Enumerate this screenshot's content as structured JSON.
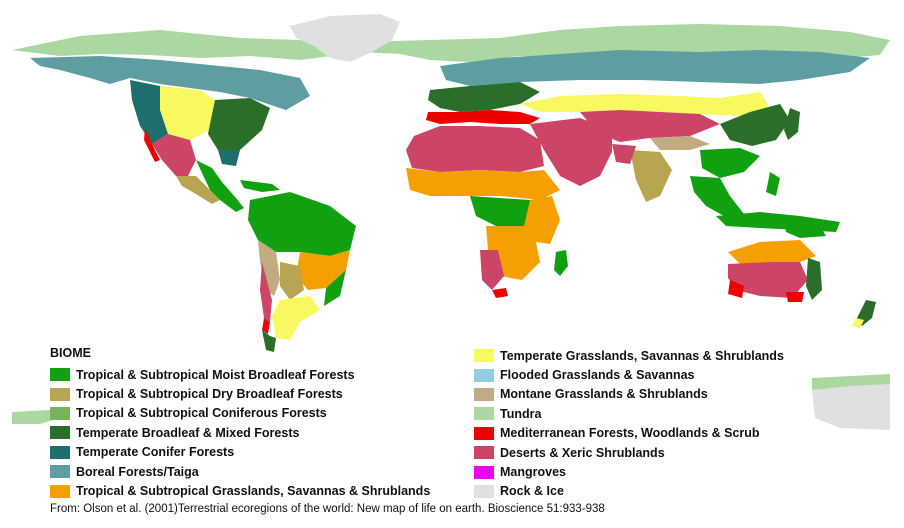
{
  "legend": {
    "title": "BIOME",
    "left_items": [
      {
        "label": "Tropical & Subtropical Moist Broadleaf Forests",
        "color": "#10a010"
      },
      {
        "label": "Tropical & Subtropical Dry Broadleaf Forests",
        "color": "#b8a552"
      },
      {
        "label": "Tropical & Subtropical Coniferous Forests",
        "color": "#78b45a"
      },
      {
        "label": "Temperate Broadleaf & Mixed Forests",
        "color": "#2a6e2a"
      },
      {
        "label": "Temperate Conifer Forests",
        "color": "#1e6e6e"
      },
      {
        "label": "Boreal Forests/Taiga",
        "color": "#5f9ea0"
      },
      {
        "label": "Tropical & Subtropical Grasslands, Savannas & Shrublands",
        "color": "#f5a000"
      }
    ],
    "right_items": [
      {
        "label": "Temperate Grasslands, Savannas & Shrublands",
        "color": "#f8f860"
      },
      {
        "label": "Flooded Grasslands & Savannas",
        "color": "#96cde6"
      },
      {
        "label": "Montane Grasslands & Shrublands",
        "color": "#c0ab82"
      },
      {
        "label": "Tundra",
        "color": "#aad8a0"
      },
      {
        "label": "Mediterranean Forests, Woodlands & Scrub",
        "color": "#ee0000"
      },
      {
        "label": "Deserts & Xeric Shrublands",
        "color": "#cc4466"
      },
      {
        "label": "Mangroves",
        "color": "#ee00ee"
      },
      {
        "label": "Rock & Ice",
        "color": "#e0e0e0"
      }
    ]
  },
  "credit": "From: Olson et al. (2001)Terrestrial ecoregions of the world: New map of life on earth. Bioscience 51:933-938"
}
